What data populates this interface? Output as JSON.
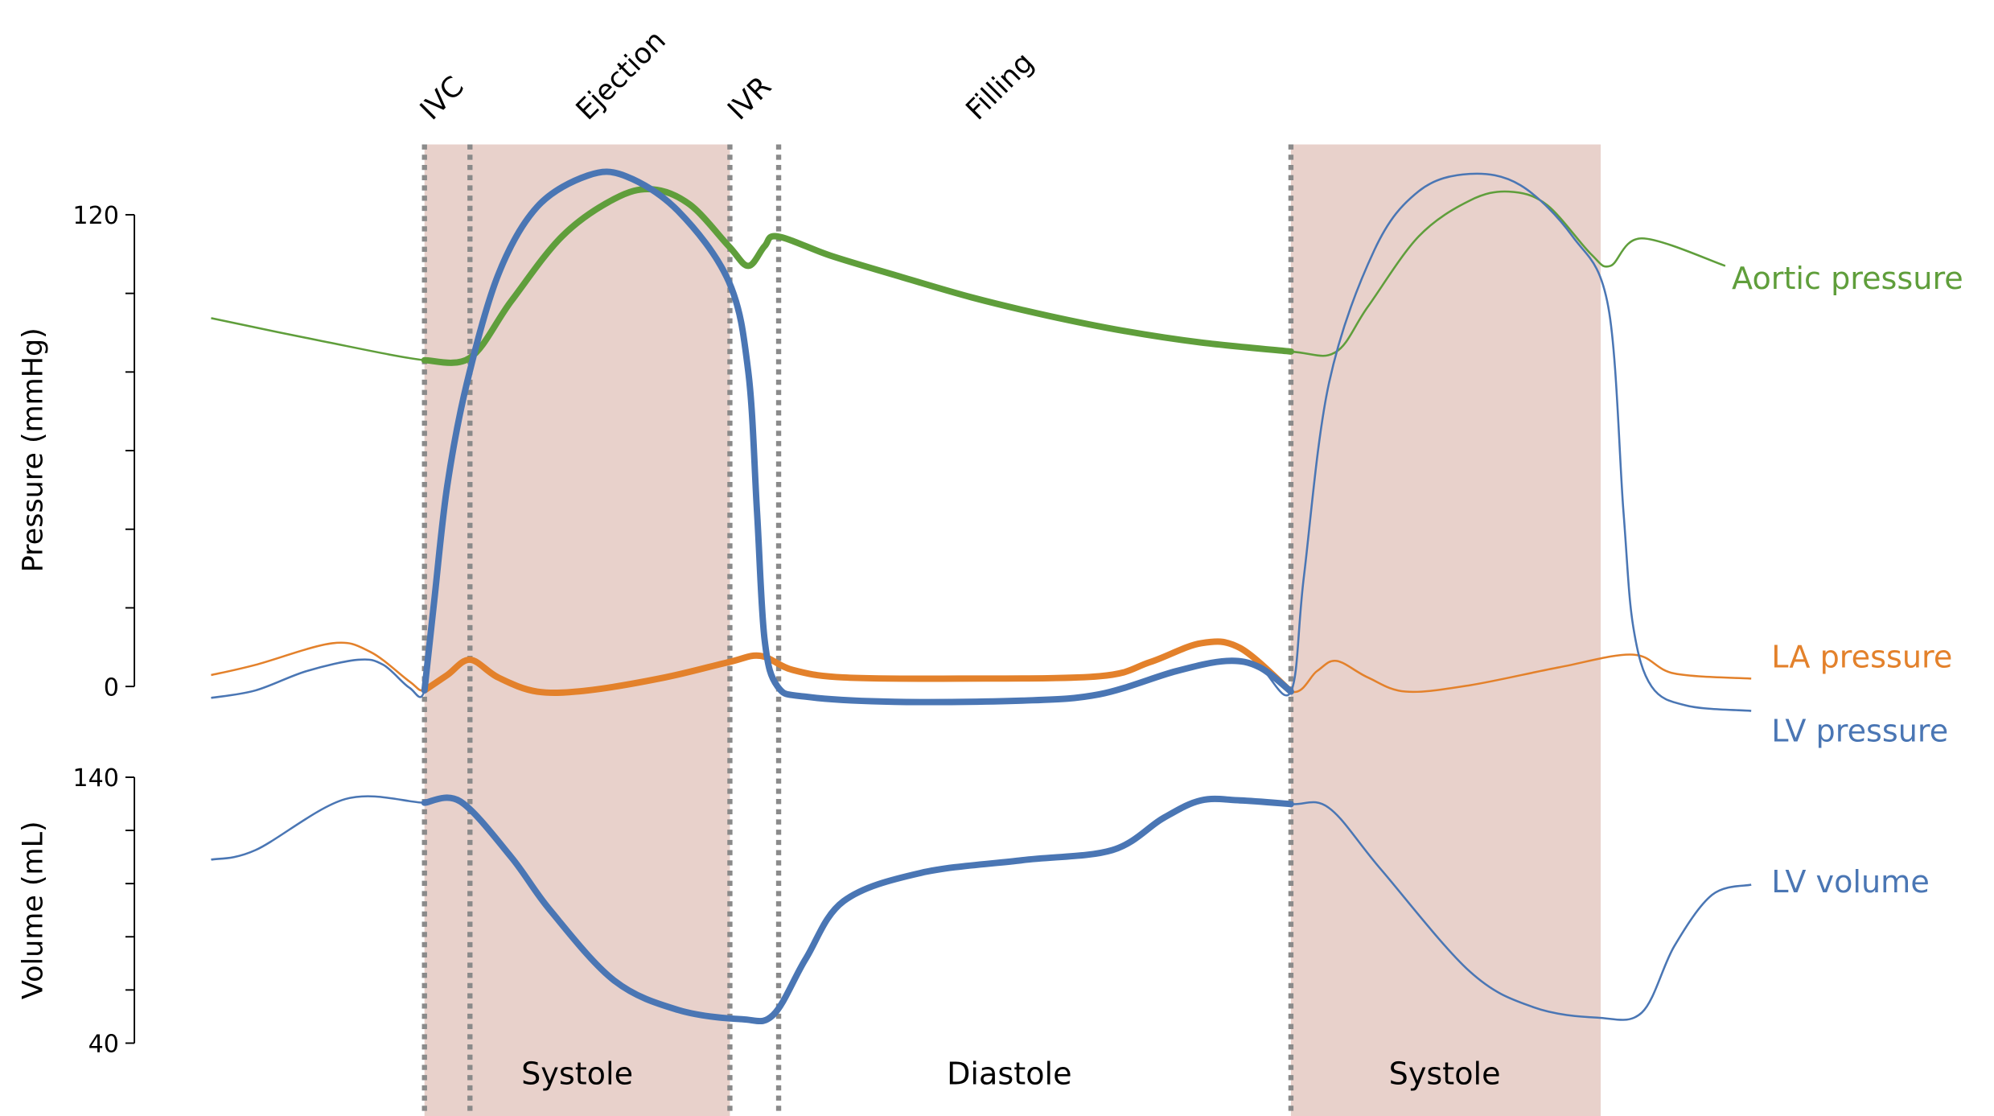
{
  "chart_data": {
    "type": "line",
    "title": "",
    "time_unit": "ms (arbitrary, cycle onset at IVC = 0)",
    "highlighted_cycle": [
      0,
      800
    ],
    "colors": {
      "lv": "#4a76b4",
      "aortic": "#5f9e3b",
      "la": "#e3812b",
      "shade": "#e8d1cb",
      "marker": "#8a8a8a"
    },
    "pressure_axis": {
      "label": "Pressure (mmHg)",
      "ylim": [
        0,
        120
      ],
      "ticks": [
        0,
        20,
        40,
        60,
        80,
        100,
        120
      ],
      "tick_labels": [
        "0",
        "120"
      ]
    },
    "volume_axis": {
      "label": "Volume (mL)",
      "ylim": [
        40,
        140
      ],
      "ticks": [
        40,
        60,
        80,
        100,
        120,
        140
      ],
      "tick_labels": [
        "40",
        "140"
      ]
    },
    "phase_markers": [
      0,
      42,
      282,
      327,
      800
    ],
    "phase_labels": [
      {
        "text": "IVC",
        "t": 21
      },
      {
        "text": "Ejection",
        "t": 165
      },
      {
        "text": "IVR",
        "t": 305
      },
      {
        "text": "Filling",
        "t": 525
      }
    ],
    "shaded_regions": [
      [
        0,
        282
      ],
      [
        800,
        1086
      ]
    ],
    "region_labels": [
      {
        "text": "Systole",
        "t": 141
      },
      {
        "text": "Diastole",
        "t": 540
      },
      {
        "text": "Systole",
        "t": 942
      }
    ],
    "series": [
      {
        "name": "Aortic pressure",
        "axis": "pressure",
        "color_key": "aortic",
        "t": [
          -197,
          -97,
          0,
          42,
          80,
          127,
          175,
          210,
          245,
          281,
          299,
          314,
          326,
          375,
          434,
          505,
          576,
          647,
          717,
          800,
          841,
          871,
          918,
          965,
          1001,
          1036,
          1077,
          1095,
          1124,
          1201
        ],
        "values": [
          93.7,
          88,
          83,
          83.6,
          98,
          114.5,
          124,
          126.5,
          122.6,
          112,
          107,
          112,
          114.5,
          109.6,
          104.7,
          99,
          94.3,
          90.4,
          87.5,
          85.2,
          85,
          96.6,
          114.5,
          123.6,
          125.9,
          122.6,
          110,
          107,
          114,
          107
        ]
      },
      {
        "name": "LA pressure",
        "axis": "pressure",
        "color_key": "la",
        "t": [
          -197,
          -156,
          -85,
          -50,
          -14,
          0,
          21,
          42,
          68,
          104,
          151,
          222,
          281,
          310,
          340,
          387,
          493,
          623,
          670,
          717,
          753,
          800,
          824,
          842,
          871,
          906,
          965,
          1048,
          1116,
          1154,
          1225
        ],
        "values": [
          2.9,
          5.5,
          11,
          8.8,
          1.3,
          -1,
          2.9,
          6.8,
          2.3,
          -1.3,
          -1,
          2.3,
          6.2,
          7.8,
          4.2,
          2.3,
          2,
          2.6,
          6.2,
          11,
          9.8,
          -1.3,
          3.9,
          6.5,
          2.3,
          -1.3,
          0.3,
          4.9,
          8.1,
          3.3,
          2
        ]
      },
      {
        "name": "LV pressure",
        "axis": "pressure",
        "color_key": "lv",
        "t": [
          -197,
          -156,
          -109,
          -61,
          -38,
          -14,
          0,
          9,
          21,
          39,
          68,
          104,
          151,
          186,
          234,
          281,
          299,
          307,
          314,
          326,
          352,
          434,
          552,
          623,
          694,
          741,
          771,
          800,
          812,
          835,
          877,
          918,
          965,
          1012,
          1060,
          1093,
          1107,
          1116,
          1133,
          1166,
          1225
        ],
        "values": [
          -2.9,
          -1,
          3.9,
          6.8,
          5.5,
          -0.3,
          -1,
          21.8,
          51,
          77,
          104.7,
          122,
          130,
          129.8,
          121,
          103,
          80,
          44.6,
          12,
          0,
          -2.6,
          -3.9,
          -3.6,
          -2,
          3.9,
          6.5,
          4.9,
          -1.3,
          28,
          77,
          111,
          126,
          130.4,
          127.5,
          114.5,
          96.6,
          44.6,
          15.3,
          0,
          -4.9,
          -6.2
        ]
      },
      {
        "name": "LV volume",
        "axis": "volume",
        "color_key": "lv",
        "t": [
          -197,
          -156,
          -73,
          0,
          33,
          80,
          116,
          175,
          234,
          293,
          322,
          352,
          387,
          458,
          552,
          635,
          682,
          717,
          753,
          800,
          835,
          883,
          965,
          1024,
          1083,
          1124,
          1154,
          1189,
          1225
        ],
        "values": [
          109,
          112.6,
          131.8,
          130.4,
          130.9,
          110,
          90,
          63.6,
          52.5,
          49,
          50.6,
          71.7,
          93.4,
          104,
          108.8,
          112.6,
          124.6,
          131.3,
          131.3,
          129.9,
          128.5,
          105.4,
          67,
          53.5,
          49.6,
          51.5,
          76.5,
          95.8,
          99.6
        ]
      }
    ],
    "legend": [
      {
        "text": "Aortic pressure",
        "color_key": "aortic"
      },
      {
        "text": "LA pressure",
        "color_key": "la"
      },
      {
        "text": "LV pressure",
        "color_key": "lv"
      },
      {
        "text": "LV volume",
        "color_key": "lv"
      }
    ]
  }
}
